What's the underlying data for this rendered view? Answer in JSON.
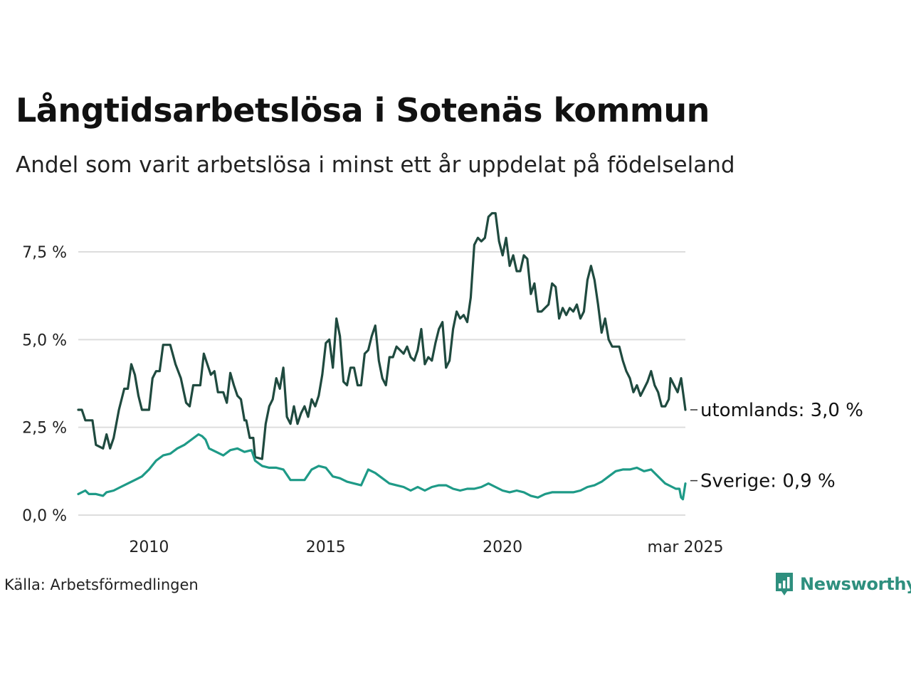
{
  "colors": {
    "utomlands": "#1f4a3f",
    "sverige": "#1e9a87",
    "grid": "#dddddd",
    "brand": "#2e8f7e"
  },
  "source": "Källa: Arbetsförmedlingen",
  "brand": {
    "name": "Newsworthy",
    "icon": "bar-chart-pin-icon"
  },
  "chart_data": {
    "type": "line",
    "title": "Långtidsarbetslösa i Sotenäs kommun",
    "subtitle": "Andel som varit arbetslösa i minst ett år uppdelat på födelseland",
    "xlabel": "",
    "ylabel": "",
    "x_start": "2008-01",
    "x_end": "2025-03",
    "xlim": [
      2008.0,
      2025.17
    ],
    "ylim": [
      0,
      8.7
    ],
    "y_ticks": [
      {
        "value": 0.0,
        "label": "0,0 %"
      },
      {
        "value": 2.5,
        "label": "2,5 %"
      },
      {
        "value": 5.0,
        "label": "5,0 %"
      },
      {
        "value": 7.5,
        "label": "7,5 %"
      }
    ],
    "x_ticks": [
      {
        "value": 2010.0,
        "label": "2010"
      },
      {
        "value": 2015.0,
        "label": "2015"
      },
      {
        "value": 2020.0,
        "label": "2020"
      },
      {
        "value": 2025.17,
        "label": "mar 2025"
      }
    ],
    "grid": true,
    "legend": "end-labels",
    "series": [
      {
        "key": "utomlands",
        "label": "utomlands: 3,0 %",
        "points": [
          [
            2008.0,
            3.0
          ],
          [
            2008.1,
            3.0
          ],
          [
            2008.2,
            2.7
          ],
          [
            2008.4,
            2.7
          ],
          [
            2008.5,
            2.0
          ],
          [
            2008.7,
            1.9
          ],
          [
            2008.8,
            2.3
          ],
          [
            2008.9,
            1.9
          ],
          [
            2009.0,
            2.2
          ],
          [
            2009.15,
            3.0
          ],
          [
            2009.3,
            3.6
          ],
          [
            2009.4,
            3.6
          ],
          [
            2009.5,
            4.3
          ],
          [
            2009.6,
            4.0
          ],
          [
            2009.7,
            3.4
          ],
          [
            2009.8,
            3.0
          ],
          [
            2009.9,
            3.0
          ],
          [
            2010.0,
            3.0
          ],
          [
            2010.1,
            3.9
          ],
          [
            2010.2,
            4.1
          ],
          [
            2010.3,
            4.1
          ],
          [
            2010.4,
            4.85
          ],
          [
            2010.6,
            4.85
          ],
          [
            2010.75,
            4.3
          ],
          [
            2010.9,
            3.9
          ],
          [
            2011.05,
            3.2
          ],
          [
            2011.15,
            3.1
          ],
          [
            2011.25,
            3.7
          ],
          [
            2011.45,
            3.7
          ],
          [
            2011.55,
            4.6
          ],
          [
            2011.65,
            4.3
          ],
          [
            2011.75,
            4.0
          ],
          [
            2011.85,
            4.1
          ],
          [
            2011.95,
            3.5
          ],
          [
            2012.1,
            3.5
          ],
          [
            2012.2,
            3.2
          ],
          [
            2012.3,
            4.05
          ],
          [
            2012.4,
            3.7
          ],
          [
            2012.5,
            3.4
          ],
          [
            2012.6,
            3.3
          ],
          [
            2012.7,
            2.7
          ],
          [
            2012.75,
            2.7
          ],
          [
            2012.85,
            2.2
          ],
          [
            2012.95,
            2.2
          ],
          [
            2013.0,
            1.65
          ],
          [
            2013.2,
            1.6
          ],
          [
            2013.3,
            2.6
          ],
          [
            2013.4,
            3.1
          ],
          [
            2013.5,
            3.3
          ],
          [
            2013.6,
            3.9
          ],
          [
            2013.7,
            3.6
          ],
          [
            2013.8,
            4.2
          ],
          [
            2013.9,
            2.8
          ],
          [
            2014.0,
            2.6
          ],
          [
            2014.1,
            3.1
          ],
          [
            2014.2,
            2.6
          ],
          [
            2014.3,
            2.9
          ],
          [
            2014.4,
            3.1
          ],
          [
            2014.5,
            2.8
          ],
          [
            2014.6,
            3.3
          ],
          [
            2014.7,
            3.1
          ],
          [
            2014.8,
            3.4
          ],
          [
            2014.9,
            4.0
          ],
          [
            2015.0,
            4.9
          ],
          [
            2015.1,
            5.0
          ],
          [
            2015.2,
            4.2
          ],
          [
            2015.3,
            5.6
          ],
          [
            2015.4,
            5.1
          ],
          [
            2015.5,
            3.8
          ],
          [
            2015.6,
            3.7
          ],
          [
            2015.7,
            4.2
          ],
          [
            2015.8,
            4.2
          ],
          [
            2015.9,
            3.7
          ],
          [
            2016.0,
            3.7
          ],
          [
            2016.1,
            4.6
          ],
          [
            2016.2,
            4.7
          ],
          [
            2016.3,
            5.1
          ],
          [
            2016.4,
            5.4
          ],
          [
            2016.5,
            4.4
          ],
          [
            2016.6,
            3.9
          ],
          [
            2016.7,
            3.7
          ],
          [
            2016.8,
            4.5
          ],
          [
            2016.9,
            4.5
          ],
          [
            2017.0,
            4.8
          ],
          [
            2017.1,
            4.7
          ],
          [
            2017.2,
            4.6
          ],
          [
            2017.3,
            4.8
          ],
          [
            2017.4,
            4.5
          ],
          [
            2017.5,
            4.4
          ],
          [
            2017.6,
            4.7
          ],
          [
            2017.7,
            5.3
          ],
          [
            2017.8,
            4.3
          ],
          [
            2017.9,
            4.5
          ],
          [
            2018.0,
            4.4
          ],
          [
            2018.1,
            4.9
          ],
          [
            2018.2,
            5.3
          ],
          [
            2018.3,
            5.5
          ],
          [
            2018.4,
            4.2
          ],
          [
            2018.5,
            4.4
          ],
          [
            2018.6,
            5.3
          ],
          [
            2018.7,
            5.8
          ],
          [
            2018.8,
            5.6
          ],
          [
            2018.9,
            5.7
          ],
          [
            2019.0,
            5.5
          ],
          [
            2019.1,
            6.2
          ],
          [
            2019.2,
            7.7
          ],
          [
            2019.3,
            7.9
          ],
          [
            2019.4,
            7.8
          ],
          [
            2019.5,
            7.9
          ],
          [
            2019.6,
            8.5
          ],
          [
            2019.7,
            8.6
          ],
          [
            2019.8,
            8.6
          ],
          [
            2019.9,
            7.8
          ],
          [
            2020.0,
            7.4
          ],
          [
            2020.1,
            7.9
          ],
          [
            2020.2,
            7.1
          ],
          [
            2020.3,
            7.4
          ],
          [
            2020.4,
            6.95
          ],
          [
            2020.5,
            6.95
          ],
          [
            2020.6,
            7.4
          ],
          [
            2020.7,
            7.3
          ],
          [
            2020.8,
            6.3
          ],
          [
            2020.9,
            6.6
          ],
          [
            2021.0,
            5.8
          ],
          [
            2021.1,
            5.8
          ],
          [
            2021.2,
            5.9
          ],
          [
            2021.3,
            6.0
          ],
          [
            2021.4,
            6.6
          ],
          [
            2021.5,
            6.5
          ],
          [
            2021.6,
            5.6
          ],
          [
            2021.7,
            5.9
          ],
          [
            2021.8,
            5.7
          ],
          [
            2021.9,
            5.9
          ],
          [
            2022.0,
            5.8
          ],
          [
            2022.1,
            6.0
          ],
          [
            2022.2,
            5.6
          ],
          [
            2022.3,
            5.8
          ],
          [
            2022.4,
            6.7
          ],
          [
            2022.5,
            7.1
          ],
          [
            2022.6,
            6.7
          ],
          [
            2022.7,
            6.0
          ],
          [
            2022.8,
            5.2
          ],
          [
            2022.9,
            5.6
          ],
          [
            2023.0,
            5.0
          ],
          [
            2023.1,
            4.8
          ],
          [
            2023.3,
            4.8
          ],
          [
            2023.4,
            4.4
          ],
          [
            2023.5,
            4.1
          ],
          [
            2023.6,
            3.9
          ],
          [
            2023.7,
            3.5
          ],
          [
            2023.8,
            3.7
          ],
          [
            2023.9,
            3.4
          ],
          [
            2024.0,
            3.6
          ],
          [
            2024.1,
            3.8
          ],
          [
            2024.2,
            4.1
          ],
          [
            2024.3,
            3.7
          ],
          [
            2024.4,
            3.5
          ],
          [
            2024.5,
            3.1
          ],
          [
            2024.6,
            3.1
          ],
          [
            2024.7,
            3.3
          ],
          [
            2024.75,
            3.9
          ],
          [
            2024.85,
            3.7
          ],
          [
            2024.95,
            3.5
          ],
          [
            2025.05,
            3.9
          ],
          [
            2025.17,
            3.0
          ]
        ]
      },
      {
        "key": "sverige",
        "label": "Sverige: 0,9 %",
        "points": [
          [
            2008.0,
            0.6
          ],
          [
            2008.2,
            0.7
          ],
          [
            2008.3,
            0.6
          ],
          [
            2008.5,
            0.6
          ],
          [
            2008.7,
            0.55
          ],
          [
            2008.8,
            0.65
          ],
          [
            2009.0,
            0.7
          ],
          [
            2009.2,
            0.8
          ],
          [
            2009.4,
            0.9
          ],
          [
            2009.6,
            1.0
          ],
          [
            2009.8,
            1.1
          ],
          [
            2010.0,
            1.3
          ],
          [
            2010.2,
            1.55
          ],
          [
            2010.4,
            1.7
          ],
          [
            2010.6,
            1.75
          ],
          [
            2010.8,
            1.9
          ],
          [
            2011.0,
            2.0
          ],
          [
            2011.2,
            2.15
          ],
          [
            2011.4,
            2.3
          ],
          [
            2011.5,
            2.25
          ],
          [
            2011.6,
            2.15
          ],
          [
            2011.7,
            1.9
          ],
          [
            2011.9,
            1.8
          ],
          [
            2012.1,
            1.7
          ],
          [
            2012.3,
            1.85
          ],
          [
            2012.5,
            1.9
          ],
          [
            2012.7,
            1.8
          ],
          [
            2012.9,
            1.85
          ],
          [
            2013.0,
            1.55
          ],
          [
            2013.2,
            1.4
          ],
          [
            2013.4,
            1.35
          ],
          [
            2013.6,
            1.35
          ],
          [
            2013.8,
            1.3
          ],
          [
            2014.0,
            1.0
          ],
          [
            2014.2,
            1.0
          ],
          [
            2014.4,
            1.0
          ],
          [
            2014.6,
            1.3
          ],
          [
            2014.8,
            1.4
          ],
          [
            2015.0,
            1.35
          ],
          [
            2015.2,
            1.1
          ],
          [
            2015.4,
            1.05
          ],
          [
            2015.6,
            0.95
          ],
          [
            2015.8,
            0.9
          ],
          [
            2016.0,
            0.85
          ],
          [
            2016.2,
            1.3
          ],
          [
            2016.4,
            1.2
          ],
          [
            2016.6,
            1.05
          ],
          [
            2016.8,
            0.9
          ],
          [
            2017.0,
            0.85
          ],
          [
            2017.2,
            0.8
          ],
          [
            2017.4,
            0.7
          ],
          [
            2017.6,
            0.8
          ],
          [
            2017.8,
            0.7
          ],
          [
            2018.0,
            0.8
          ],
          [
            2018.2,
            0.85
          ],
          [
            2018.4,
            0.85
          ],
          [
            2018.6,
            0.75
          ],
          [
            2018.8,
            0.7
          ],
          [
            2019.0,
            0.75
          ],
          [
            2019.2,
            0.75
          ],
          [
            2019.4,
            0.8
          ],
          [
            2019.6,
            0.9
          ],
          [
            2019.8,
            0.8
          ],
          [
            2020.0,
            0.7
          ],
          [
            2020.2,
            0.65
          ],
          [
            2020.4,
            0.7
          ],
          [
            2020.6,
            0.65
          ],
          [
            2020.8,
            0.55
          ],
          [
            2021.0,
            0.5
          ],
          [
            2021.2,
            0.6
          ],
          [
            2021.4,
            0.65
          ],
          [
            2021.6,
            0.65
          ],
          [
            2021.8,
            0.65
          ],
          [
            2022.0,
            0.65
          ],
          [
            2022.2,
            0.7
          ],
          [
            2022.4,
            0.8
          ],
          [
            2022.6,
            0.85
          ],
          [
            2022.8,
            0.95
          ],
          [
            2023.0,
            1.1
          ],
          [
            2023.2,
            1.25
          ],
          [
            2023.4,
            1.3
          ],
          [
            2023.6,
            1.3
          ],
          [
            2023.8,
            1.35
          ],
          [
            2024.0,
            1.25
          ],
          [
            2024.2,
            1.3
          ],
          [
            2024.4,
            1.1
          ],
          [
            2024.6,
            0.9
          ],
          [
            2024.8,
            0.8
          ],
          [
            2024.9,
            0.75
          ],
          [
            2025.0,
            0.75
          ],
          [
            2025.05,
            0.5
          ],
          [
            2025.1,
            0.45
          ],
          [
            2025.17,
            0.9
          ]
        ]
      }
    ]
  }
}
